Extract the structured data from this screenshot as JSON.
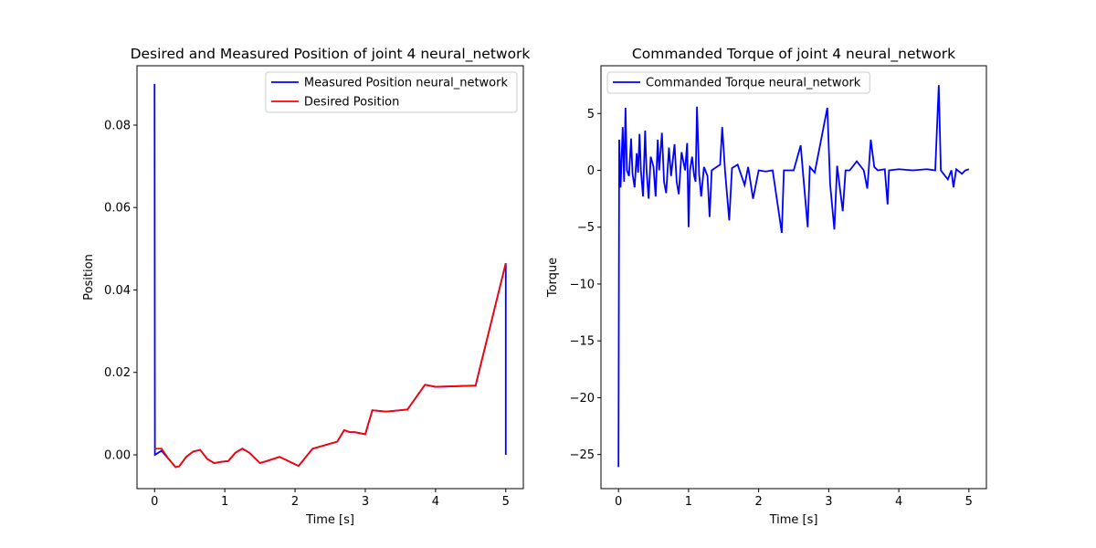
{
  "chart_data": [
    {
      "type": "line",
      "title": "Desired and Measured Position of joint 4 neural_network",
      "xlabel": "Time [s]",
      "ylabel": "Position",
      "xlim": [
        -0.25,
        5.25
      ],
      "ylim": [
        -0.0082,
        0.0944
      ],
      "xticks": [
        0,
        1,
        2,
        3,
        4,
        5
      ],
      "yticks": [
        {
          "value": 0,
          "label": "0.00"
        },
        {
          "value": 0.02,
          "label": "0.02"
        },
        {
          "value": 0.04,
          "label": "0.04"
        },
        {
          "value": 0.06,
          "label": "0.06"
        },
        {
          "value": 0.08,
          "label": "0.08"
        }
      ],
      "legend": "upper right",
      "series": [
        {
          "name": "Measured Position neural_network",
          "color": "#0000ff",
          "x": [
            0,
            0.005,
            0.1,
            0.2,
            0.3,
            0.35,
            0.45,
            0.55,
            0.65,
            0.75,
            0.85,
            0.95,
            1.05,
            1.15,
            1.25,
            1.35,
            1.5,
            1.6,
            1.78,
            2.05,
            2.25,
            2.6,
            2.7,
            2.78,
            2.85,
            3.0,
            3.1,
            3.3,
            3.6,
            3.85,
            4.0,
            4.57,
            5.0,
            5.0
          ],
          "values": [
            0.09,
            0.0,
            0.001,
            -0.001,
            -0.003,
            -0.0028,
            -0.0005,
            0.0008,
            0.0012,
            -0.001,
            -0.002,
            -0.0017,
            -0.0015,
            0.0005,
            0.0015,
            0.0005,
            -0.002,
            -0.0015,
            -0.0005,
            -0.0027,
            0.0015,
            0.0032,
            0.006,
            0.0055,
            0.0055,
            0.005,
            0.0108,
            0.0105,
            0.011,
            0.017,
            0.0165,
            0.0168,
            0.0465,
            0.0
          ]
        },
        {
          "name": "Desired Position",
          "color": "#ff0000",
          "x": [
            0,
            0.1,
            0.2,
            0.3,
            0.35,
            0.45,
            0.55,
            0.65,
            0.75,
            0.85,
            0.95,
            1.05,
            1.15,
            1.25,
            1.35,
            1.5,
            1.6,
            1.78,
            2.05,
            2.25,
            2.6,
            2.7,
            2.78,
            2.85,
            3.0,
            3.1,
            3.3,
            3.6,
            3.85,
            4.0,
            4.57,
            5.0
          ],
          "values": [
            0.0015,
            0.0015,
            -0.001,
            -0.003,
            -0.0028,
            -0.0005,
            0.0008,
            0.0012,
            -0.001,
            -0.002,
            -0.0017,
            -0.0015,
            0.0005,
            0.0015,
            0.0005,
            -0.002,
            -0.0015,
            -0.0005,
            -0.0027,
            0.0015,
            0.0032,
            0.006,
            0.0055,
            0.0055,
            0.005,
            0.0108,
            0.0105,
            0.011,
            0.017,
            0.0165,
            0.0168,
            0.0465
          ]
        }
      ]
    },
    {
      "type": "line",
      "title": "Commanded Torque of joint 4 neural_network",
      "xlabel": "Time [s]",
      "ylabel": "Torque",
      "xlim": [
        -0.25,
        5.25
      ],
      "ylim": [
        -28.0,
        9.2
      ],
      "xticks": [
        0,
        1,
        2,
        3,
        4,
        5
      ],
      "yticks": [
        {
          "value": -25,
          "label": "−25"
        },
        {
          "value": -20,
          "label": "−20"
        },
        {
          "value": -15,
          "label": "−15"
        },
        {
          "value": -10,
          "label": "−10"
        },
        {
          "value": -5,
          "label": "−5"
        },
        0,
        5
      ],
      "legend": "upper left",
      "series": [
        {
          "name": "Commanded Torque neural_network",
          "color": "#0000ff",
          "x": [
            0,
            0.01,
            0.03,
            0.06,
            0.08,
            0.1,
            0.12,
            0.15,
            0.18,
            0.2,
            0.23,
            0.26,
            0.28,
            0.3,
            0.32,
            0.35,
            0.38,
            0.4,
            0.43,
            0.46,
            0.5,
            0.53,
            0.56,
            0.58,
            0.62,
            0.65,
            0.68,
            0.72,
            0.75,
            0.8,
            0.83,
            0.86,
            0.9,
            0.95,
            0.98,
            1.0,
            1.02,
            1.05,
            1.08,
            1.1,
            1.12,
            1.15,
            1.18,
            1.22,
            1.27,
            1.3,
            1.33,
            1.45,
            1.48,
            1.52,
            1.58,
            1.62,
            1.7,
            1.8,
            1.85,
            1.92,
            2.0,
            2.1,
            2.2,
            2.33,
            2.36,
            2.5,
            2.6,
            2.63,
            2.7,
            2.73,
            2.8,
            2.98,
            3.02,
            3.08,
            3.12,
            3.2,
            3.24,
            3.3,
            3.4,
            3.5,
            3.55,
            3.57,
            3.6,
            3.65,
            3.7,
            3.8,
            3.84,
            3.86,
            4.0,
            4.2,
            4.4,
            4.52,
            4.57,
            4.6,
            4.7,
            4.75,
            4.78,
            4.82,
            4.9,
            4.95,
            5.0
          ],
          "values": [
            -26.1,
            2.7,
            -1.5,
            3.8,
            -1,
            5.5,
            0,
            -0.5,
            2.8,
            -0.3,
            -1.5,
            1.5,
            -0.2,
            3.2,
            0,
            -2.3,
            3.5,
            0,
            -2.5,
            1.2,
            0.3,
            -2.3,
            2.7,
            0,
            3.3,
            -1,
            -2,
            2,
            -0.5,
            2.3,
            -1,
            -2.1,
            1.6,
            0,
            2.4,
            -5,
            0,
            1.2,
            -0.5,
            -1,
            5.6,
            -0.3,
            -2.3,
            0.3,
            -0.5,
            -4.1,
            0,
            0.5,
            3.8,
            0,
            -4.4,
            0.2,
            0.5,
            -1.3,
            0.3,
            -2.5,
            0,
            -0.1,
            0,
            -5.5,
            0,
            0,
            2.2,
            0,
            -5,
            0.3,
            -0.2,
            5.5,
            -1.2,
            -5.2,
            0.4,
            -3.6,
            0,
            0,
            0.8,
            0,
            -1.6,
            0,
            2.7,
            0.3,
            0,
            0.1,
            -3,
            0,
            0.1,
            0,
            0.1,
            0,
            7.5,
            0,
            -0.8,
            0,
            -1.5,
            0.1,
            -0.3,
            0,
            0.1
          ]
        }
      ]
    }
  ]
}
